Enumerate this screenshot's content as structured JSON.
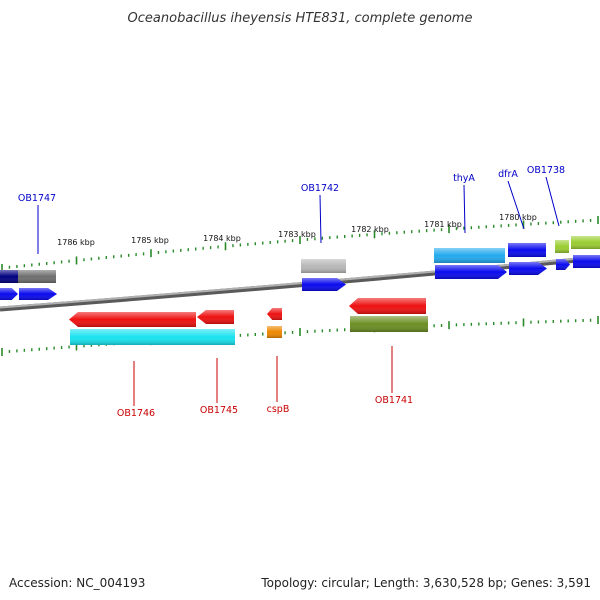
{
  "title": "Oceanobacillus iheyensis HTE831, complete genome",
  "footer": {
    "accession": "Accession: NC_004193",
    "topology": "Topology: circular; Length: 3,630,528 bp; Genes: 3,591"
  },
  "kbp_labels": [
    "1786 kbp",
    "1785 kbp",
    "1784 kbp",
    "1783 kbp",
    "1782 kbp",
    "1781 kbp",
    "1780 kbp"
  ],
  "gene_labels": {
    "top": [
      "OB1747",
      "OB1742",
      "thyA",
      "dfrA",
      "OB1738"
    ],
    "bottom": [
      "OB1746",
      "OB1745",
      "cspB",
      "OB1741"
    ]
  },
  "colors": {
    "backbone": "#8a8a8a",
    "tick": "#2a8a2a",
    "cds_blue": "#0a0aee",
    "navy": "#000080",
    "red": "#ee1111",
    "cyan": "#19e3f0",
    "sky_blue": "#22aaee",
    "olive": "#6b8e23",
    "gray": "#b8b8b8",
    "dark_gray": "#6e6e6e",
    "orange": "#ee8800",
    "lime": "#9acd32",
    "label_blue": "#0000c8",
    "label_red": "#c80000"
  }
}
